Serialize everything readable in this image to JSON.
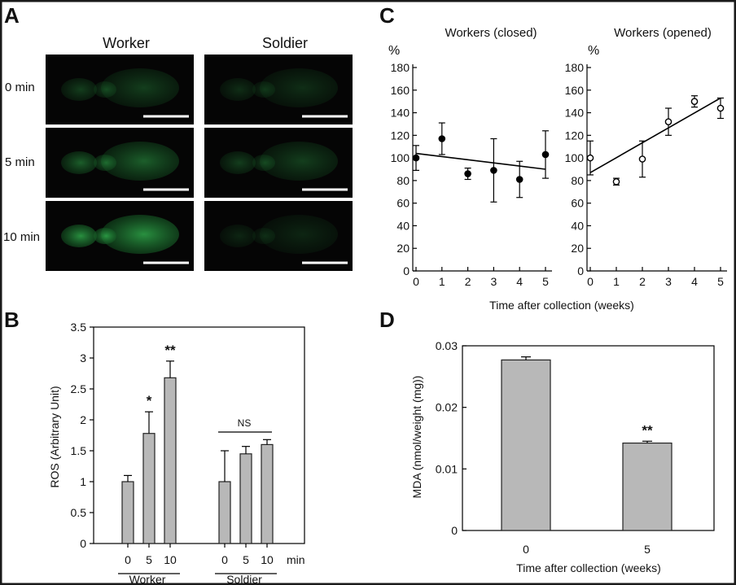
{
  "colors": {
    "frame": "#1a1a1a",
    "bar_fill": "#b8b8b8",
    "bar_stroke": "#222222",
    "micro_bg": "#050505",
    "micro_green": "#2fa84a"
  },
  "panels": {
    "a": "A",
    "b": "B",
    "c": "C",
    "d": "D"
  },
  "panel_a": {
    "columns": [
      "Worker",
      "Soldier"
    ],
    "rows": [
      "0 min",
      "5 min",
      "10 min"
    ],
    "glow": {
      "worker": [
        0.35,
        0.55,
        0.85
      ],
      "soldier": [
        0.25,
        0.35,
        0.2
      ]
    }
  },
  "chart_data": [
    {
      "id": "b",
      "type": "bar",
      "ylabel": "ROS (Arbitrary Unit)",
      "ylim": [
        0,
        3.5
      ],
      "yticks": [
        "0",
        "0.5",
        "1",
        "1.5",
        "2",
        "2.5",
        "3",
        "3.5"
      ],
      "x_unit": "min",
      "groups": [
        {
          "name": "Worker",
          "categories": [
            "0",
            "5",
            "10"
          ],
          "values": [
            1.0,
            1.78,
            2.68
          ],
          "errors": [
            0.1,
            0.35,
            0.27
          ],
          "marks": [
            "",
            "*",
            "**"
          ]
        },
        {
          "name": "Soldier",
          "categories": [
            "0",
            "5",
            "10"
          ],
          "values": [
            1.0,
            1.45,
            1.6
          ],
          "errors": [
            0.5,
            0.12,
            0.08
          ],
          "marks": [
            "",
            "",
            ""
          ]
        }
      ],
      "annotations": [
        "NS"
      ]
    },
    {
      "id": "c1",
      "type": "scatter",
      "title": "Workers (closed)",
      "ylabel": "%",
      "ylim": [
        0,
        180
      ],
      "yticks": [
        "0",
        "20",
        "40",
        "60",
        "80",
        "100",
        "120",
        "140",
        "160",
        "180"
      ],
      "xticks": [
        "0",
        "1",
        "2",
        "3",
        "4",
        "5"
      ],
      "x": [
        0,
        1,
        2,
        3,
        4,
        5
      ],
      "y": [
        100,
        117,
        86,
        89,
        81,
        103
      ],
      "errors": [
        11,
        14,
        5,
        28,
        16,
        21
      ],
      "trend": [
        104,
        90
      ],
      "marker": "filled"
    },
    {
      "id": "c2",
      "type": "scatter",
      "title": "Workers (opened)",
      "ylabel": "%",
      "ylim": [
        0,
        180
      ],
      "yticks": [
        "0",
        "20",
        "40",
        "60",
        "80",
        "100",
        "120",
        "140",
        "160",
        "180"
      ],
      "xticks": [
        "0",
        "1",
        "2",
        "3",
        "4",
        "5"
      ],
      "x": [
        0,
        1,
        2,
        3,
        4,
        5
      ],
      "y": [
        100,
        79,
        99,
        132,
        150,
        144
      ],
      "errors": [
        15,
        3,
        16,
        12,
        5,
        9
      ],
      "trend": [
        87,
        153
      ],
      "marker": "open"
    },
    {
      "id": "c_x",
      "xlabel": "Time after collection (weeks)"
    },
    {
      "id": "d",
      "type": "bar",
      "ylabel": "MDA (nmol/weight (mg))",
      "ylim": [
        0,
        0.03
      ],
      "yticks": [
        "0",
        "0.01",
        "0.02",
        "0.03"
      ],
      "xlabel": "Time after collection (weeks)",
      "categories": [
        "0",
        "5"
      ],
      "values": [
        0.0277,
        0.0142
      ],
      "errors": [
        0.0005,
        0.0003
      ],
      "marks": [
        "",
        "**"
      ]
    }
  ]
}
